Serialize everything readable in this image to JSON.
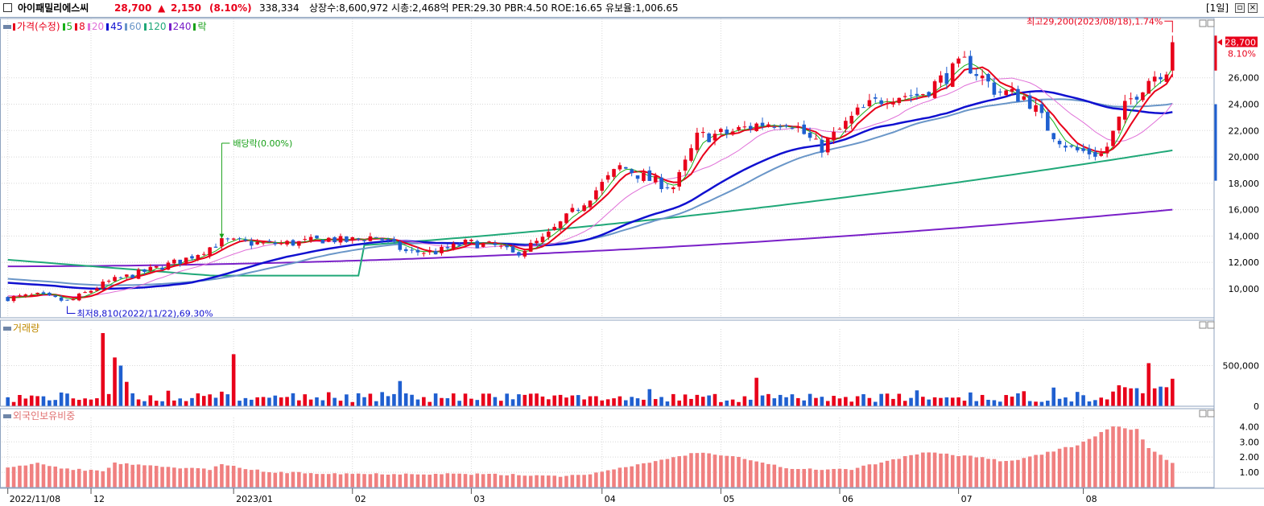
{
  "header": {
    "stock_name": "아이패밀리에스씨",
    "price": "28,700",
    "change_arrow": "▲",
    "change": "2,150",
    "change_pct": "(8.10%)",
    "volume": "338,334",
    "stats": "상장수:8,600,972 시총:2,468억 PER:29.30 PBR:4.50 ROE:16.65 유보율:1,006.65",
    "period": "[1일]",
    "restore_icon": "restore-icon",
    "close_icon": "close-icon"
  },
  "colors": {
    "up": "#e8001a",
    "down": "#1f5fd0",
    "ma5": "#18b018",
    "ma8": "#e8001a",
    "ma20": "#e070d8",
    "ma45": "#1010d0",
    "ma60": "#6a96c8",
    "ma120": "#20a878",
    "ma240": "#7a20c8",
    "foreign": "#f08080"
  },
  "price_legend": [
    {
      "label": "가격(수정)",
      "color": "#e8001a"
    },
    {
      "label": "5",
      "color": "#18b018"
    },
    {
      "label": "8",
      "color": "#e8001a"
    },
    {
      "label": "20",
      "color": "#e070d8"
    },
    {
      "label": "45",
      "color": "#1010d0"
    },
    {
      "label": "60",
      "color": "#6a96c8"
    },
    {
      "label": "120",
      "color": "#20a878"
    },
    {
      "label": "240",
      "color": "#7a20c8"
    },
    {
      "label": "락",
      "color": "#18a018"
    }
  ],
  "volume_label": "거래량",
  "foreign_label": "외국인보유비중",
  "chart_data": [
    {
      "type": "candlestick",
      "title": "가격(수정)",
      "ylim": [
        7800,
        30500
      ],
      "yticks": [
        10000,
        12000,
        14000,
        16000,
        18000,
        20000,
        22000,
        24000,
        26000
      ],
      "ytick_labels": [
        "10,000",
        "12,000",
        "14,000",
        "16,000",
        "18,000",
        "20,000",
        "22,000",
        "24,000",
        "26,000"
      ],
      "current_price": "28,700",
      "current_pct": "8.10%",
      "annotations": {
        "high": "최고29,200(2023/08/18),1.74%",
        "low": "최저8,810(2022/11/22),69.30%",
        "ex_dividend": "배당락(0.00%)"
      },
      "ma_end_values": {
        "ma5": 26000,
        "ma8": 25200,
        "ma20": 23000,
        "ma45": 24000,
        "ma60": 23500,
        "ma120": 20500,
        "ma240": 16000
      },
      "grid": true
    },
    {
      "type": "bar",
      "title": "거래량",
      "ylim": [
        0,
        950000
      ],
      "yticks": [
        0,
        500000
      ],
      "ytick_labels": [
        "0",
        "500,000"
      ],
      "last_value": 338334,
      "grid": true
    },
    {
      "type": "bar",
      "title": "외국인보유비중",
      "ylim": [
        0,
        4.6
      ],
      "yticks": [
        1,
        2,
        3,
        4
      ],
      "ytick_labels": [
        "1.00",
        "2.00",
        "3.00",
        "4.00"
      ],
      "grid": true
    }
  ],
  "x_axis": {
    "labels": [
      "2022/11/08",
      "12",
      "2023/01",
      "02",
      "03",
      "04",
      "05",
      "06",
      "07",
      "08"
    ]
  }
}
